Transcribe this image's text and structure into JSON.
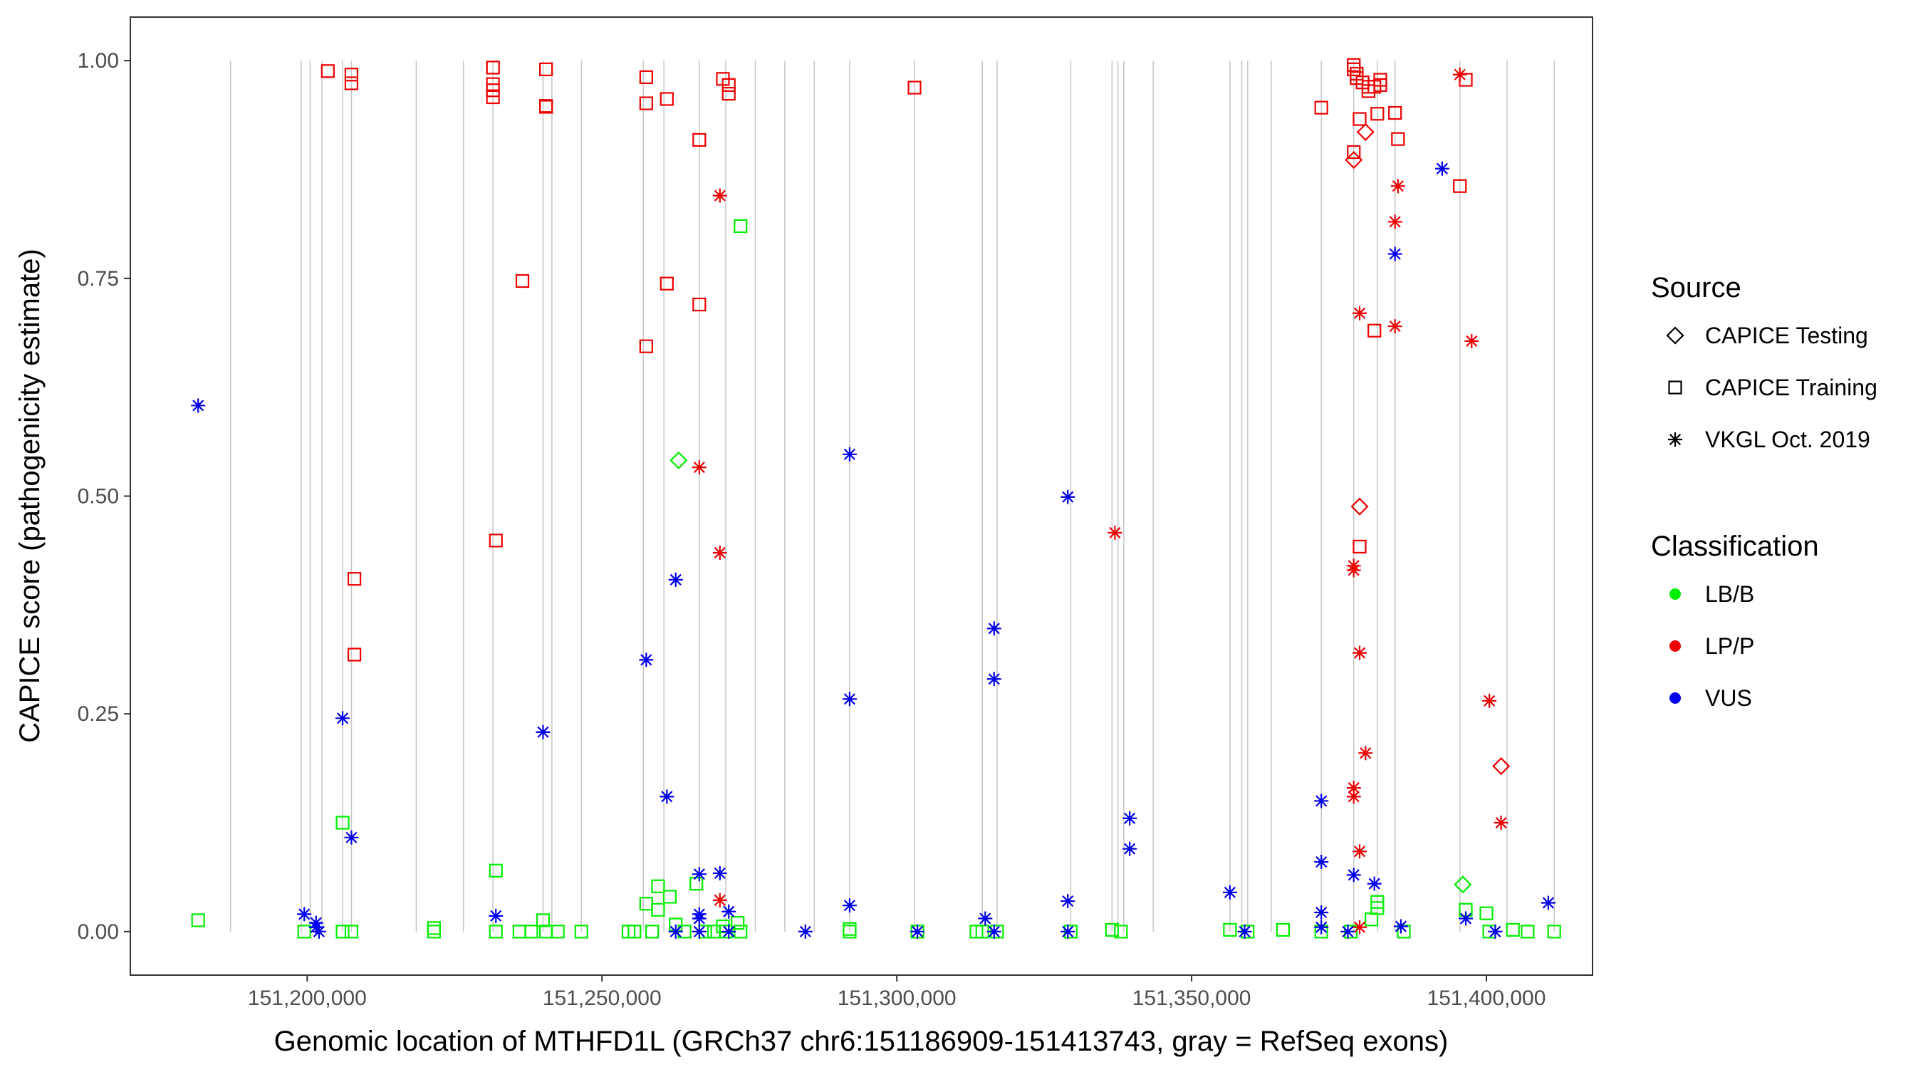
{
  "chart_data": {
    "type": "scatter",
    "xlabel": "Genomic location of MTHFD1L (GRCh37 chr6:151186909-151413743, gray = RefSeq exons)",
    "ylabel": "CAPICE score (pathogenicity estimate)",
    "xlim": [
      151170000,
      151418000
    ],
    "ylim": [
      -0.05,
      1.05
    ],
    "x_ticks": [
      151200000,
      151250000,
      151300000,
      151350000,
      151400000
    ],
    "x_tick_labels": [
      "151,200,000",
      "151,250,000",
      "151,300,000",
      "151,350,000",
      "151,400,000"
    ],
    "y_ticks": [
      0,
      0.25,
      0.5,
      0.75,
      1
    ],
    "y_tick_labels": [
      "0.00",
      "0.25",
      "0.50",
      "0.75",
      "1.00"
    ],
    "grid": false,
    "exon_lines": [
      151187000,
      151199000,
      151200500,
      151202500,
      151206000,
      151207500,
      151218500,
      151226500,
      151231500,
      151240000,
      151241500,
      151246500,
      151257000,
      151260500,
      151266500,
      151271000,
      151276000,
      151281000,
      151286000,
      151292000,
      151303000,
      151314500,
      151317000,
      151329500,
      151336500,
      151337500,
      151338500,
      151343500,
      151356500,
      151358500,
      151359500,
      151363500,
      151372000,
      151377500,
      151381500,
      151384500,
      151395500,
      151403500,
      151411500
    ],
    "legend": {
      "position": "right",
      "source_title": "Source",
      "source_entries": [
        {
          "key": "testing",
          "shape": "diamond",
          "label": "CAPICE Testing"
        },
        {
          "key": "training",
          "shape": "square",
          "label": "CAPICE Training"
        },
        {
          "key": "vkgl",
          "shape": "asterisk",
          "label": "VKGL Oct. 2019"
        }
      ],
      "class_title": "Classification",
      "class_entries": [
        {
          "key": "LB",
          "label": "LB/B",
          "color": "#00ee00"
        },
        {
          "key": "LP",
          "label": "LP/P",
          "color": "#ee0000"
        },
        {
          "key": "VUS",
          "label": "VUS",
          "color": "#0000ee"
        }
      ]
    },
    "series": [
      {
        "source": "training",
        "classification": "LP",
        "points": [
          [
            151203500,
            0.988
          ],
          [
            151207500,
            0.984
          ],
          [
            151207500,
            0.974
          ],
          [
            151231500,
            0.992
          ],
          [
            151231500,
            0.992
          ],
          [
            151231500,
            0.973
          ],
          [
            151231500,
            0.966
          ],
          [
            151231500,
            0.958
          ],
          [
            151240500,
            0.99
          ],
          [
            151240500,
            0.948
          ],
          [
            151240500,
            0.947
          ],
          [
            151257500,
            0.981
          ],
          [
            151257500,
            0.951
          ],
          [
            151261000,
            0.956
          ],
          [
            151270500,
            0.979
          ],
          [
            151271500,
            0.972
          ],
          [
            151271500,
            0.962
          ],
          [
            151266500,
            0.909
          ],
          [
            151303000,
            0.969
          ],
          [
            151261000,
            0.744
          ],
          [
            151266500,
            0.72
          ],
          [
            151257500,
            0.672
          ],
          [
            151236500,
            0.747
          ],
          [
            151232000,
            0.449
          ],
          [
            151208000,
            0.405
          ],
          [
            151208000,
            0.318
          ],
          [
            151372000,
            0.946
          ],
          [
            151377500,
            0.995
          ],
          [
            151377500,
            0.99
          ],
          [
            151378000,
            0.985
          ],
          [
            151378000,
            0.98
          ],
          [
            151379000,
            0.975
          ],
          [
            151380000,
            0.97
          ],
          [
            151380000,
            0.965
          ],
          [
            151381000,
            0.97
          ],
          [
            151382000,
            0.978
          ],
          [
            151382000,
            0.972
          ],
          [
            151378500,
            0.933
          ],
          [
            151381500,
            0.939
          ],
          [
            151384500,
            0.94
          ],
          [
            151385000,
            0.91
          ],
          [
            151377500,
            0.895
          ],
          [
            151396500,
            0.978
          ],
          [
            151395500,
            0.856
          ],
          [
            151381000,
            0.69
          ],
          [
            151378500,
            0.442
          ]
        ]
      },
      {
        "source": "training",
        "classification": "LB",
        "points": [
          [
            151181500,
            0.013
          ],
          [
            151199500,
            0
          ],
          [
            151206000,
            0.125
          ],
          [
            151206000,
            0
          ],
          [
            151207500,
            0
          ],
          [
            151221500,
            0.004
          ],
          [
            151221500,
            0
          ],
          [
            151232000,
            0.07
          ],
          [
            151232000,
            0
          ],
          [
            151236000,
            0
          ],
          [
            151238000,
            0
          ],
          [
            151240000,
            0.013
          ],
          [
            151240500,
            0
          ],
          [
            151242500,
            0
          ],
          [
            151246500,
            0
          ],
          [
            151254500,
            0
          ],
          [
            151255500,
            0
          ],
          [
            151257500,
            0.032
          ],
          [
            151258500,
            0
          ],
          [
            151259500,
            0.052
          ],
          [
            151259500,
            0.025
          ],
          [
            151261500,
            0.04
          ],
          [
            151262500,
            0.008
          ],
          [
            151264000,
            0
          ],
          [
            151266000,
            0.055
          ],
          [
            151267500,
            0
          ],
          [
            151269000,
            0
          ],
          [
            151270500,
            0.006
          ],
          [
            151271000,
            0
          ],
          [
            151273000,
            0.01
          ],
          [
            151273500,
            0.81
          ],
          [
            151273500,
            0
          ],
          [
            151292000,
            0.003
          ],
          [
            151292000,
            0
          ],
          [
            151303500,
            0
          ],
          [
            151313500,
            0
          ],
          [
            151314500,
            0
          ],
          [
            151317000,
            0
          ],
          [
            151329500,
            0
          ],
          [
            151336500,
            0.002
          ],
          [
            151338000,
            0
          ],
          [
            151356500,
            0.002
          ],
          [
            151359500,
            0
          ],
          [
            151365500,
            0.002
          ],
          [
            151372000,
            0
          ],
          [
            151377000,
            0
          ],
          [
            151380500,
            0.014
          ],
          [
            151381500,
            0.027
          ],
          [
            151381500,
            0.034
          ],
          [
            151386000,
            0
          ],
          [
            151396500,
            0.025
          ],
          [
            151400000,
            0.021
          ],
          [
            151400500,
            0
          ],
          [
            151404500,
            0.002
          ],
          [
            151407000,
            0
          ],
          [
            151411500,
            0
          ]
        ]
      },
      {
        "source": "testing",
        "classification": "LP",
        "points": [
          [
            151377500,
            0.886
          ],
          [
            151379500,
            0.918
          ],
          [
            151378500,
            0.488
          ],
          [
            151402500,
            0.19
          ]
        ]
      },
      {
        "source": "testing",
        "classification": "LB",
        "points": [
          [
            151263000,
            0.541
          ],
          [
            151396000,
            0.054
          ]
        ]
      },
      {
        "source": "vkgl",
        "classification": "LP",
        "points": [
          [
            151270000,
            0.845
          ],
          [
            151266500,
            0.533
          ],
          [
            151270000,
            0.435
          ],
          [
            151270000,
            0.036
          ],
          [
            151337000,
            0.458
          ],
          [
            151377500,
            0.42
          ],
          [
            151377500,
            0.415
          ],
          [
            151378500,
            0.71
          ],
          [
            151378500,
            0.32
          ],
          [
            151379500,
            0.205
          ],
          [
            151377500,
            0.165
          ],
          [
            151377500,
            0.155
          ],
          [
            151378500,
            0.092
          ],
          [
            151378500,
            0.005
          ],
          [
            151385000,
            0.856
          ],
          [
            151384500,
            0.815
          ],
          [
            151384500,
            0.695
          ],
          [
            151395500,
            0.984
          ],
          [
            151397500,
            0.678
          ],
          [
            151400500,
            0.265
          ],
          [
            151402500,
            0.125
          ]
        ]
      },
      {
        "source": "vkgl",
        "classification": "VUS",
        "points": [
          [
            151181500,
            0.604
          ],
          [
            151199500,
            0.02
          ],
          [
            151201500,
            0.01
          ],
          [
            151201500,
            0.005
          ],
          [
            151202000,
            0
          ],
          [
            151206000,
            0.245
          ],
          [
            151207500,
            0.108
          ],
          [
            151232000,
            0.018
          ],
          [
            151240000,
            0.229
          ],
          [
            151257500,
            0.312
          ],
          [
            151261000,
            0.155
          ],
          [
            151262500,
            0.404
          ],
          [
            151262500,
            0
          ],
          [
            151266500,
            0.066
          ],
          [
            151266500,
            0.02
          ],
          [
            151266500,
            0.015
          ],
          [
            151266500,
            0
          ],
          [
            151270000,
            0.067
          ],
          [
            151271500,
            0.023
          ],
          [
            151271500,
            0
          ],
          [
            151284500,
            0
          ],
          [
            151292000,
            0.548
          ],
          [
            151292000,
            0.267
          ],
          [
            151292000,
            0.03
          ],
          [
            151303500,
            0
          ],
          [
            151315000,
            0.015
          ],
          [
            151316500,
            0.348
          ],
          [
            151316500,
            0.29
          ],
          [
            151316500,
            0
          ],
          [
            151329000,
            0.499
          ],
          [
            151329000,
            0.035
          ],
          [
            151329000,
            0
          ],
          [
            151339500,
            0.13
          ],
          [
            151339500,
            0.095
          ],
          [
            151356500,
            0.045
          ],
          [
            151359000,
            0
          ],
          [
            151372000,
            0.15
          ],
          [
            151372000,
            0.08
          ],
          [
            151372000,
            0.022
          ],
          [
            151372000,
            0.005
          ],
          [
            151376500,
            0
          ],
          [
            151377500,
            0.065
          ],
          [
            151381000,
            0.055
          ],
          [
            151384500,
            0.778
          ],
          [
            151385500,
            0.006
          ],
          [
            151392500,
            0.876
          ],
          [
            151396500,
            0.015
          ],
          [
            151401500,
            0
          ],
          [
            151410500,
            0.033
          ]
        ]
      }
    ]
  }
}
